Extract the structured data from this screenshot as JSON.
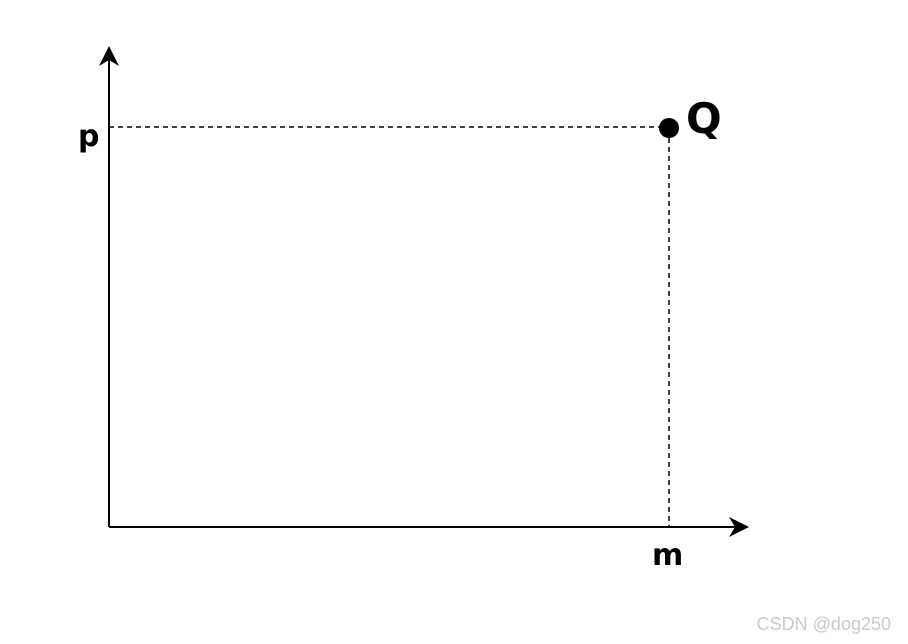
{
  "diagram": {
    "point_label": "Q",
    "y_label": "p",
    "x_label": "m"
  },
  "watermark": {
    "text": "CSDN @dog250"
  },
  "colors": {
    "ink": "#000000",
    "watermark": "#c9c9c9"
  }
}
